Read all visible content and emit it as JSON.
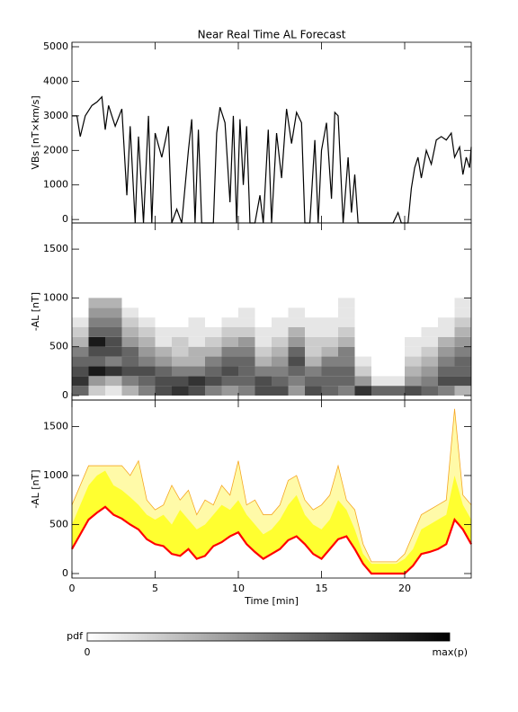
{
  "chart_data": [
    {
      "type": "line",
      "title": "Near Real Time AL Forecast",
      "ylabel": "VBs [nT×km/s]",
      "xlim": [
        0,
        24
      ],
      "xticks": [
        0,
        5,
        10,
        15,
        20
      ],
      "show_xtick_labels": false,
      "ylim": [
        -100,
        5130
      ],
      "yticks": [
        0,
        1000,
        2000,
        3000,
        4000,
        5000
      ],
      "color": "#000000",
      "x": [
        0,
        0.3,
        0.5,
        0.8,
        1.2,
        1.5,
        1.8,
        2.0,
        2.2,
        2.6,
        3.0,
        3.3,
        3.5,
        3.8,
        4.0,
        4.3,
        4.6,
        4.8,
        5.0,
        5.4,
        5.8,
        6.0,
        6.3,
        6.6,
        7.0,
        7.2,
        7.4,
        7.6,
        7.8,
        8.5,
        8.7,
        8.9,
        9.2,
        9.5,
        9.7,
        9.9,
        10.1,
        10.3,
        10.5,
        10.7,
        11.0,
        11.3,
        11.5,
        11.8,
        12.0,
        12.3,
        12.6,
        12.9,
        13.2,
        13.5,
        13.8,
        14.0,
        14.3,
        14.6,
        14.8,
        15.0,
        15.3,
        15.6,
        15.8,
        16.0,
        16.3,
        16.6,
        16.8,
        17.0,
        17.2,
        17.5,
        19.3,
        19.6,
        19.8,
        20.2,
        20.4,
        20.6,
        20.8,
        21.0,
        21.3,
        21.6,
        21.9,
        22.2,
        22.5,
        22.8,
        23.0,
        23.3,
        23.5,
        23.7,
        23.9,
        24.0
      ],
      "values": [
        3000,
        3000,
        2400,
        3000,
        3300,
        3400,
        3550,
        2600,
        3300,
        2700,
        3200,
        700,
        2700,
        -100,
        2400,
        -100,
        3000,
        -100,
        2500,
        1800,
        2700,
        -100,
        300,
        -100,
        2000,
        2900,
        -100,
        2600,
        -100,
        -100,
        2500,
        3250,
        2800,
        500,
        3000,
        -100,
        2900,
        1000,
        2700,
        -100,
        -100,
        700,
        -100,
        2600,
        -100,
        2500,
        1200,
        3200,
        2200,
        3100,
        2800,
        -100,
        -100,
        2300,
        -100,
        2000,
        2800,
        600,
        3100,
        3000,
        -100,
        1800,
        200,
        1300,
        -100,
        -100,
        -100,
        200,
        -100,
        -100,
        900,
        1500,
        1800,
        1200,
        2000,
        1600,
        2300,
        2400,
        2300,
        2500,
        1800,
        2100,
        1300,
        1800,
        1500,
        2100
      ]
    },
    {
      "type": "heatmap",
      "ylabel": "-AL [nT]",
      "xlim": [
        0,
        24
      ],
      "xticks": [
        0,
        5,
        10,
        15,
        20
      ],
      "show_xtick_labels": false,
      "ylim": [
        -46,
        1768
      ],
      "yticks": [
        0,
        500,
        1000,
        1500
      ],
      "xbins": [
        0,
        1,
        2,
        3,
        4,
        5,
        6,
        7,
        8,
        9,
        10,
        11,
        12,
        13,
        14,
        15,
        16,
        17,
        18,
        19,
        20,
        21,
        22,
        23,
        24
      ],
      "ybins": [
        0,
        100,
        200,
        300,
        400,
        500,
        600,
        700,
        800,
        900,
        1000
      ],
      "pdf": [
        [
          0.6,
          0.8,
          0.7,
          0.6,
          0.5,
          0.3,
          0.2,
          0.1,
          0,
          0
        ],
        [
          0.2,
          0.4,
          0.9,
          0.6,
          0.7,
          0.9,
          0.6,
          0.5,
          0.4,
          0.3
        ],
        [
          0.1,
          0.3,
          0.8,
          0.5,
          0.7,
          0.7,
          0.6,
          0.5,
          0.4,
          0.3
        ],
        [
          0.3,
          0.5,
          0.7,
          0.6,
          0.6,
          0.4,
          0.3,
          0.2,
          0.1,
          0
        ],
        [
          0.5,
          0.6,
          0.7,
          0.5,
          0.4,
          0.3,
          0.2,
          0.1,
          0,
          0
        ],
        [
          0.7,
          0.7,
          0.6,
          0.4,
          0.3,
          0.1,
          0.1,
          0,
          0,
          0
        ],
        [
          0.8,
          0.7,
          0.5,
          0.3,
          0.2,
          0.2,
          0.1,
          0,
          0,
          0
        ],
        [
          0.7,
          0.8,
          0.5,
          0.3,
          0.3,
          0.1,
          0.1,
          0.1,
          0,
          0
        ],
        [
          0.5,
          0.7,
          0.6,
          0.5,
          0.3,
          0.2,
          0.1,
          0,
          0,
          0
        ],
        [
          0.4,
          0.6,
          0.7,
          0.6,
          0.5,
          0.3,
          0.2,
          0.1,
          0,
          0
        ],
        [
          0.5,
          0.6,
          0.6,
          0.6,
          0.5,
          0.4,
          0.2,
          0.1,
          0.1,
          0
        ],
        [
          0.7,
          0.7,
          0.5,
          0.3,
          0.2,
          0.1,
          0.1,
          0,
          0,
          0
        ],
        [
          0.7,
          0.6,
          0.5,
          0.4,
          0.3,
          0.2,
          0.1,
          0.1,
          0,
          0
        ],
        [
          0.4,
          0.5,
          0.6,
          0.7,
          0.6,
          0.4,
          0.3,
          0.1,
          0.1,
          0
        ],
        [
          0.7,
          0.6,
          0.5,
          0.3,
          0.2,
          0.2,
          0.1,
          0.1,
          0,
          0
        ],
        [
          0.6,
          0.6,
          0.6,
          0.5,
          0.3,
          0.2,
          0.1,
          0.1,
          0,
          0
        ],
        [
          0.5,
          0.6,
          0.6,
          0.5,
          0.5,
          0.3,
          0.2,
          0.1,
          0.1,
          0.1
        ],
        [
          0.8,
          0.4,
          0.2,
          0.1,
          0,
          0,
          0,
          0,
          0,
          0
        ],
        [
          0.6,
          0.1,
          0,
          0,
          0,
          0,
          0,
          0,
          0,
          0
        ],
        [
          0.6,
          0.1,
          0,
          0,
          0,
          0,
          0,
          0,
          0,
          0
        ],
        [
          0.7,
          0.4,
          0.3,
          0.2,
          0.1,
          0.1,
          0,
          0,
          0,
          0
        ],
        [
          0.6,
          0.5,
          0.4,
          0.3,
          0.2,
          0.1,
          0.1,
          0,
          0,
          0
        ],
        [
          0.5,
          0.7,
          0.6,
          0.5,
          0.4,
          0.3,
          0.1,
          0.1,
          0,
          0
        ],
        [
          0.3,
          0.7,
          0.6,
          0.6,
          0.5,
          0.4,
          0.3,
          0.2,
          0.1,
          0.1
        ]
      ],
      "colorbar": {
        "label": "pdf",
        "min_label": "0",
        "max_label": "max(p)"
      }
    },
    {
      "type": "band",
      "ylabel": "-AL [nT]",
      "xlabel": "Time [min]",
      "xlim": [
        0,
        24
      ],
      "xticks": [
        0,
        5,
        10,
        15,
        20
      ],
      "show_xtick_labels": true,
      "ylim": [
        -46,
        1770
      ],
      "yticks": [
        0,
        500,
        1000,
        1500
      ],
      "x": [
        0,
        0.5,
        1,
        1.5,
        2,
        2.5,
        3,
        3.5,
        4,
        4.5,
        5,
        5.5,
        6,
        6.5,
        7,
        7.5,
        8,
        8.5,
        9,
        9.5,
        10,
        10.5,
        11,
        11.5,
        12,
        12.5,
        13,
        13.5,
        14,
        14.5,
        15,
        15.5,
        16,
        16.5,
        17,
        17.5,
        18,
        18.5,
        19,
        19.5,
        20,
        20.5,
        21,
        21.5,
        22,
        22.5,
        23,
        23.5,
        24
      ],
      "series": [
        {
          "fill": "#fffaa8",
          "stroke": "#f5a623",
          "values": [
            700,
            900,
            1100,
            1100,
            1100,
            1100,
            1100,
            1000,
            1150,
            750,
            650,
            700,
            900,
            750,
            850,
            600,
            750,
            700,
            900,
            800,
            1150,
            700,
            750,
            600,
            600,
            700,
            950,
            1000,
            750,
            650,
            700,
            800,
            1100,
            750,
            650,
            300,
            120,
            120,
            120,
            120,
            200,
            400,
            600,
            650,
            700,
            750,
            1680,
            800,
            700
          ]
        },
        {
          "fill": "#ffff30",
          "values": [
            500,
            700,
            900,
            1000,
            1050,
            900,
            850,
            780,
            700,
            600,
            550,
            600,
            500,
            650,
            550,
            450,
            500,
            600,
            700,
            650,
            750,
            600,
            500,
            400,
            450,
            550,
            700,
            800,
            600,
            500,
            450,
            550,
            750,
            650,
            450,
            200,
            100,
            100,
            100,
            100,
            150,
            250,
            450,
            500,
            550,
            600,
            1000,
            700,
            550
          ]
        },
        {
          "fill": "#ffffff",
          "stroke": "#ff0000",
          "values": [
            250,
            400,
            550,
            620,
            680,
            600,
            560,
            500,
            450,
            350,
            300,
            280,
            200,
            180,
            250,
            150,
            180,
            280,
            320,
            380,
            420,
            300,
            220,
            150,
            200,
            250,
            340,
            380,
            300,
            200,
            150,
            250,
            350,
            380,
            250,
            100,
            0,
            0,
            0,
            0,
            0,
            80,
            200,
            220,
            250,
            300,
            550,
            450,
            300
          ]
        }
      ]
    }
  ]
}
